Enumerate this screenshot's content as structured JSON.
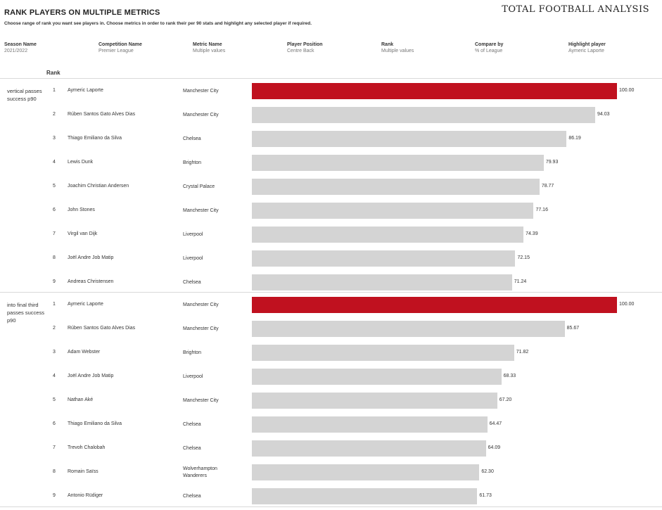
{
  "header": {
    "title": "RANK PLAYERS ON MULTIPLE METRICS",
    "subtitle": "Choose range of rank you want see players in. Choose metrics in order to rank their per 90 stats and highlight any selected player if required.",
    "brand": "TOTAL FOOTBALL ANALYSIS"
  },
  "filters": [
    {
      "label": "Season Name",
      "value": "2021/2022"
    },
    {
      "label": "Competition Name",
      "value": "Premier League"
    },
    {
      "label": "Metric Name",
      "value": "Multiple values"
    },
    {
      "label": "Player Position",
      "value": "Centre Back"
    },
    {
      "label": "Rank",
      "value": "Multiple values"
    },
    {
      "label": "Compare by",
      "value": "% of League"
    },
    {
      "label": "Highlight player",
      "value": "Aymeric  Laporte"
    }
  ],
  "rank_header": "Rank",
  "colors": {
    "highlight": "#c0111f",
    "bar": "#d4d4d4"
  },
  "chart_data": {
    "type": "bar",
    "orientation": "horizontal",
    "xlim": [
      0,
      100
    ],
    "highlight_player": "Aymeric  Laporte",
    "groups": [
      {
        "metric": "vertical passes success p90",
        "rows": [
          {
            "rank": "1",
            "player": "Aymeric  Laporte",
            "club": "Manchester City",
            "value": 100.0,
            "label": "100.00"
          },
          {
            "rank": "2",
            "player": "Rúben  Santos Gato Alves Dias",
            "club": "Manchester City",
            "value": 94.03,
            "label": "94.03"
          },
          {
            "rank": "3",
            "player": "Thiago Emiliano da Silva",
            "club": "Chelsea",
            "value": 86.19,
            "label": "86.19"
          },
          {
            "rank": "4",
            "player": "Lewis Dunk",
            "club": "Brighton",
            "value": 79.93,
            "label": "79.93"
          },
          {
            "rank": "5",
            "player": "Joachim Christian Andersen",
            "club": "Crystal Palace",
            "value": 78.77,
            "label": "78.77"
          },
          {
            "rank": "6",
            "player": "John Stones",
            "club": "Manchester City",
            "value": 77.16,
            "label": "77.16"
          },
          {
            "rank": "7",
            "player": "Virgil van Dijk",
            "club": "Liverpool",
            "value": 74.39,
            "label": "74.39"
          },
          {
            "rank": "8",
            "player": "Joël Andre Job Matip",
            "club": "Liverpool",
            "value": 72.15,
            "label": "72.15"
          },
          {
            "rank": "9",
            "player": "Andreas Christensen",
            "club": "Chelsea",
            "value": 71.24,
            "label": "71.24"
          }
        ]
      },
      {
        "metric": "into final third passes success p90",
        "rows": [
          {
            "rank": "1",
            "player": "Aymeric  Laporte",
            "club": "Manchester City",
            "value": 100.0,
            "label": "100.00"
          },
          {
            "rank": "2",
            "player": "Rúben  Santos Gato Alves Dias",
            "club": "Manchester City",
            "value": 85.67,
            "label": "85.67"
          },
          {
            "rank": "3",
            "player": "Adam Webster",
            "club": "Brighton",
            "value": 71.82,
            "label": "71.82"
          },
          {
            "rank": "4",
            "player": "Joël Andre Job Matip",
            "club": "Liverpool",
            "value": 68.33,
            "label": "68.33"
          },
          {
            "rank": "5",
            "player": "Nathan Aké",
            "club": "Manchester City",
            "value": 67.2,
            "label": "67.20"
          },
          {
            "rank": "6",
            "player": "Thiago Emiliano da Silva",
            "club": "Chelsea",
            "value": 64.47,
            "label": "64.47"
          },
          {
            "rank": "7",
            "player": "Trevoh Chalobah",
            "club": "Chelsea",
            "value": 64.09,
            "label": "64.09"
          },
          {
            "rank": "8",
            "player": "Romain Saïss",
            "club": "Wolverhampton Wanderers",
            "value": 62.3,
            "label": "62.30"
          },
          {
            "rank": "9",
            "player": "Antonio Rüdiger",
            "club": "Chelsea",
            "value": 61.73,
            "label": "61.73"
          }
        ]
      }
    ]
  }
}
